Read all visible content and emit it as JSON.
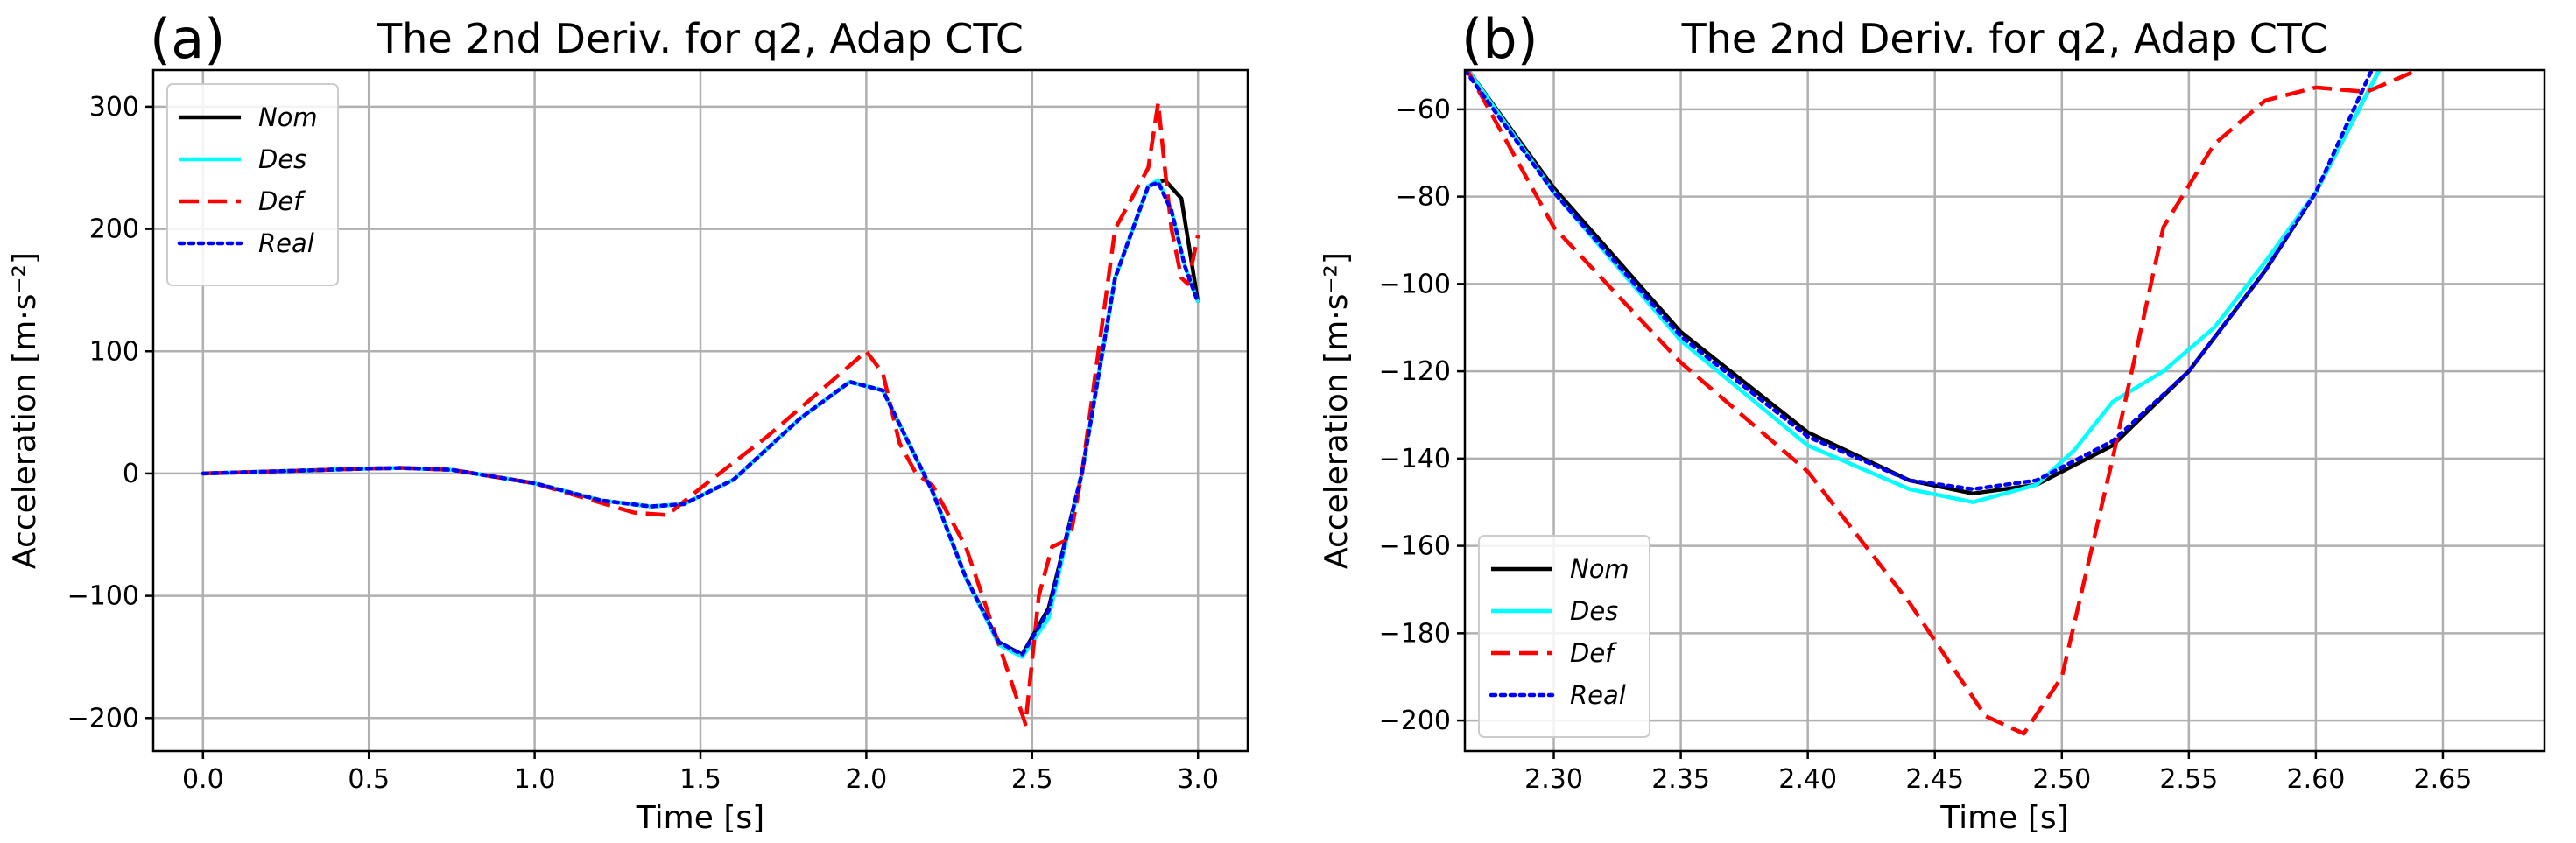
{
  "chart_data": [
    {
      "type": "line",
      "panel": "(a)",
      "title": "The 2nd Deriv. for q2, Adap  CTC",
      "xlabel": "Time [s]",
      "ylabel": "Acceleration [m·s⁻²]",
      "xlim": [
        -0.15,
        3.15
      ],
      "ylim": [
        -227,
        330
      ],
      "xticks": [
        0.0,
        0.5,
        1.0,
        1.5,
        2.0,
        2.5,
        3.0
      ],
      "xtick_labels": [
        "0.0",
        "0.5",
        "1.0",
        "1.5",
        "2.0",
        "2.5",
        "3.0"
      ],
      "yticks": [
        -200,
        -100,
        0,
        100,
        200,
        300
      ],
      "ytick_labels": [
        "−200",
        "−100",
        "0",
        "100",
        "200",
        "300"
      ],
      "grid": true,
      "legend_position": "top-left",
      "series": [
        {
          "name": "Nom",
          "color": "#000000",
          "style": "solid",
          "x": [
            0,
            0.25,
            0.5,
            0.6,
            0.75,
            1.0,
            1.2,
            1.35,
            1.45,
            1.6,
            1.8,
            1.95,
            2.05,
            2.2,
            2.3,
            2.4,
            2.47,
            2.55,
            2.65,
            2.75,
            2.85,
            2.9,
            2.95,
            3.0
          ],
          "y": [
            0,
            2,
            4,
            4.5,
            3,
            -8,
            -22,
            -27,
            -25,
            -5,
            45,
            75,
            68,
            -15,
            -85,
            -138,
            -148,
            -110,
            0,
            160,
            235,
            240,
            225,
            140
          ]
        },
        {
          "name": "Des",
          "color": "#00ffff",
          "style": "solid",
          "x": [
            0,
            0.25,
            0.5,
            0.6,
            0.75,
            1.0,
            1.2,
            1.35,
            1.45,
            1.6,
            1.8,
            1.95,
            2.05,
            2.2,
            2.3,
            2.4,
            2.47,
            2.55,
            2.65,
            2.75,
            2.85,
            2.88,
            2.92,
            2.96,
            3.0
          ],
          "y": [
            0,
            2,
            4,
            4.5,
            3,
            -8,
            -22,
            -27,
            -25,
            -5,
            45,
            75,
            68,
            -15,
            -85,
            -140,
            -150,
            -118,
            0,
            160,
            235,
            240,
            215,
            170,
            140
          ]
        },
        {
          "name": "Def",
          "color": "#ff0000",
          "style": "dashed",
          "x": [
            0,
            0.25,
            0.5,
            0.6,
            0.75,
            1.0,
            1.2,
            1.3,
            1.4,
            1.5,
            1.7,
            1.85,
            2.0,
            2.05,
            2.1,
            2.15,
            2.2,
            2.3,
            2.4,
            2.48,
            2.52,
            2.56,
            2.6,
            2.62,
            2.65,
            2.75,
            2.85,
            2.88,
            2.9,
            2.92,
            2.95,
            2.97,
            3.0
          ],
          "y": [
            0,
            2,
            4,
            4.5,
            3,
            -8,
            -24,
            -32,
            -34,
            -12,
            30,
            65,
            100,
            82,
            25,
            0,
            -10,
            -60,
            -140,
            -205,
            -100,
            -60,
            -55,
            -45,
            0,
            200,
            250,
            303,
            250,
            200,
            160,
            155,
            195
          ]
        },
        {
          "name": "Real",
          "color": "#0000ff",
          "style": "dotted",
          "x": [
            0,
            0.25,
            0.5,
            0.6,
            0.75,
            1.0,
            1.2,
            1.35,
            1.45,
            1.6,
            1.8,
            1.95,
            2.05,
            2.2,
            2.3,
            2.4,
            2.47,
            2.55,
            2.65,
            2.75,
            2.85,
            2.88,
            2.92,
            2.96,
            3.0
          ],
          "y": [
            0,
            2,
            4,
            4.5,
            3,
            -8,
            -22,
            -27,
            -25,
            -5,
            45,
            75,
            68,
            -15,
            -85,
            -138,
            -148,
            -112,
            0,
            160,
            235,
            238,
            215,
            170,
            140
          ]
        }
      ]
    },
    {
      "type": "line",
      "panel": "(b)",
      "title": "The 2nd Deriv. for q2, Adap  CTC",
      "xlabel": "Time [s]",
      "ylabel": "Acceleration [m·s⁻²]",
      "xlim": [
        2.265,
        2.69
      ],
      "ylim": [
        -207,
        -51
      ],
      "xticks": [
        2.3,
        2.35,
        2.4,
        2.45,
        2.5,
        2.55,
        2.6,
        2.65
      ],
      "xtick_labels": [
        "2.30",
        "2.35",
        "2.40",
        "2.45",
        "2.50",
        "2.55",
        "2.60",
        "2.65"
      ],
      "yticks": [
        -200,
        -180,
        -160,
        -140,
        -120,
        -100,
        -80,
        -60
      ],
      "ytick_labels": [
        "−200",
        "−180",
        "−160",
        "−140",
        "−120",
        "−100",
        "−80",
        "−60"
      ],
      "grid": true,
      "legend_position": "bottom-left",
      "series": [
        {
          "name": "Nom",
          "color": "#000000",
          "style": "solid",
          "x": [
            2.265,
            2.3,
            2.35,
            2.4,
            2.44,
            2.465,
            2.49,
            2.52,
            2.55,
            2.58,
            2.6,
            2.625
          ],
          "y": [
            -50,
            -78,
            -111,
            -134,
            -145,
            -148,
            -146,
            -137,
            -120,
            -97,
            -79,
            -51
          ]
        },
        {
          "name": "Des",
          "color": "#00ffff",
          "style": "solid",
          "x": [
            2.265,
            2.3,
            2.35,
            2.4,
            2.44,
            2.465,
            2.49,
            2.505,
            2.52,
            2.54,
            2.56,
            2.58,
            2.6,
            2.625
          ],
          "y": [
            -50,
            -79,
            -113,
            -137,
            -147,
            -150,
            -146,
            -138,
            -127,
            -120,
            -110,
            -95,
            -79,
            -51
          ]
        },
        {
          "name": "Def",
          "color": "#ff0000",
          "style": "dashed",
          "x": [
            2.265,
            2.3,
            2.35,
            2.4,
            2.44,
            2.47,
            2.485,
            2.5,
            2.52,
            2.54,
            2.56,
            2.58,
            2.6,
            2.62,
            2.64
          ],
          "y": [
            -50,
            -87,
            -118,
            -143,
            -173,
            -199,
            -203,
            -190,
            -140,
            -87,
            -68,
            -58,
            -55,
            -56,
            -51
          ]
        },
        {
          "name": "Real",
          "color": "#0000ff",
          "style": "dotted",
          "x": [
            2.265,
            2.3,
            2.35,
            2.4,
            2.44,
            2.465,
            2.49,
            2.52,
            2.55,
            2.58,
            2.6,
            2.622
          ],
          "y": [
            -51,
            -79,
            -112,
            -135,
            -145,
            -147,
            -145,
            -136,
            -120,
            -97,
            -79,
            -51
          ]
        }
      ]
    }
  ]
}
